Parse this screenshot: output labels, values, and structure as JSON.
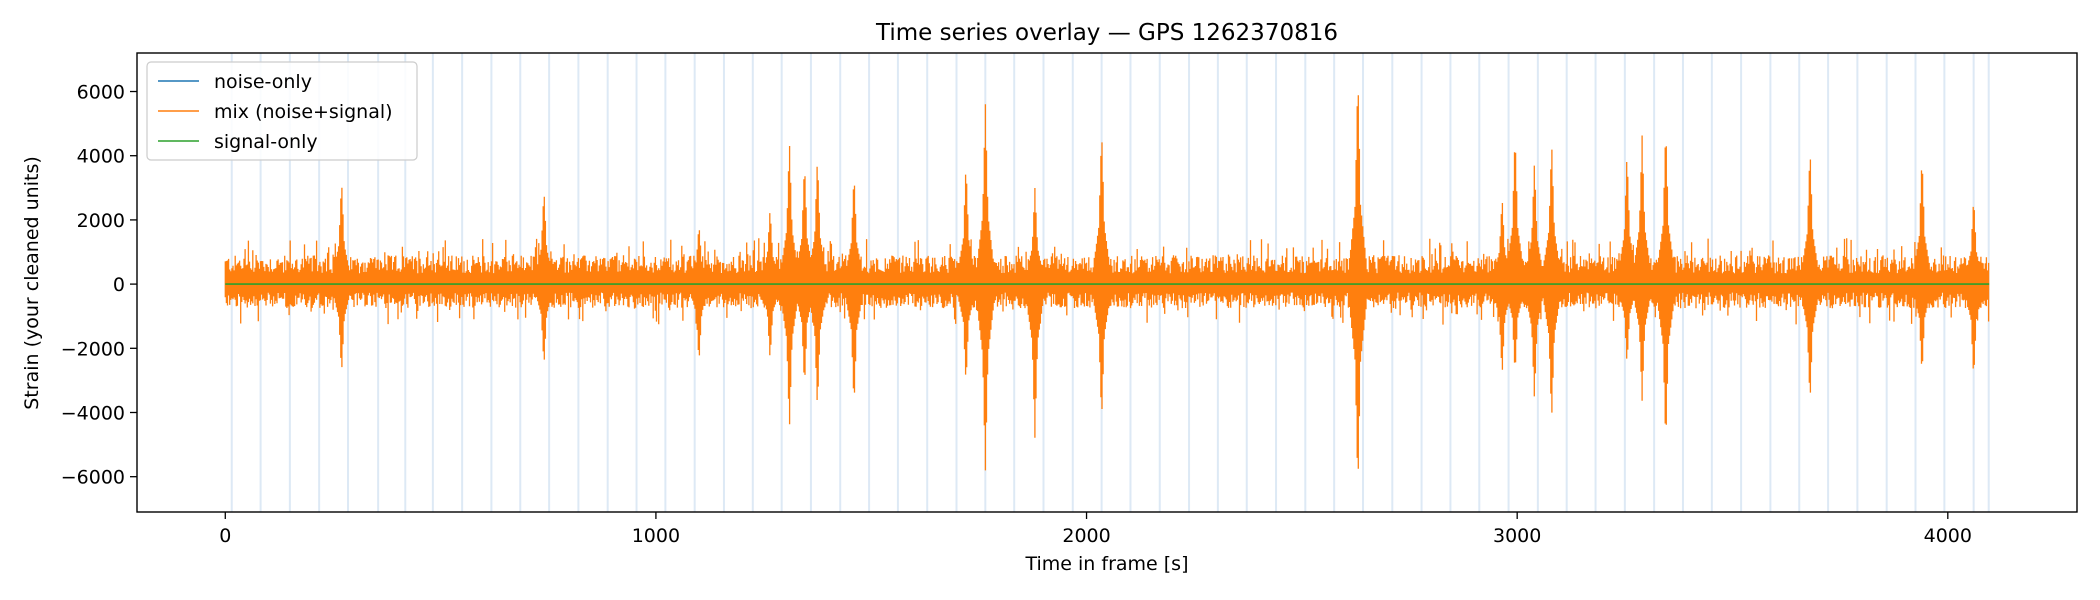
{
  "chart_data": {
    "type": "line",
    "title": "Time series overlay — GPS 1262370816",
    "xlabel": "Time in frame [s]",
    "ylabel": "Strain (your cleaned units)",
    "xlim": [
      -205,
      4300
    ],
    "ylim": [
      -7100,
      7200
    ],
    "xticks": [
      0,
      1000,
      2000,
      3000,
      4000
    ],
    "yticks": [
      -6000,
      -4000,
      -2000,
      0,
      2000,
      4000,
      6000
    ],
    "ytick_labels": [
      "−6000",
      "−4000",
      "−2000",
      "0",
      "2000",
      "4000",
      "6000"
    ],
    "grid": false,
    "legend_position": "upper-left",
    "data_range": [
      0,
      4096
    ],
    "series": [
      {
        "name": "noise-only",
        "color": "#1f77b4",
        "baseline_amplitude": 700
      },
      {
        "name": "mix (noise+signal)",
        "color": "#ff7f0e",
        "baseline_amplitude": 750
      },
      {
        "name": "signal-only",
        "color": "#2ca02c",
        "values_approx": 0
      }
    ],
    "segment_marker_color": "#c6dbef",
    "segment_markers_x": [
      15,
      82,
      150,
      218,
      285,
      355,
      418,
      482,
      550,
      618,
      685,
      752,
      820,
      888,
      955,
      1022,
      1090,
      1158,
      1225,
      1292,
      1360,
      1428,
      1495,
      1562,
      1630,
      1698,
      1765,
      1832,
      1900,
      1968,
      2035,
      2102,
      2170,
      2238,
      2305,
      2372,
      2440,
      2508,
      2575,
      2642,
      2710,
      2778,
      2845,
      2912,
      2980,
      3048,
      3115,
      3182,
      3250,
      3318,
      3385,
      3452,
      3520,
      3588,
      3655,
      3722,
      3790,
      3858,
      3925,
      3992,
      4060,
      4095
    ],
    "spikes": [
      {
        "x": 270,
        "ymax": 3250,
        "ymin": -2800
      },
      {
        "x": 740,
        "ymax": 2950,
        "ymin": -2550
      },
      {
        "x": 1100,
        "ymax": 1850,
        "ymin": -2450
      },
      {
        "x": 1265,
        "ymax": 2350,
        "ymin": -2350
      },
      {
        "x": 1310,
        "ymax": 4480,
        "ymin": -4550
      },
      {
        "x": 1345,
        "ymax": 3800,
        "ymin": -3200
      },
      {
        "x": 1375,
        "ymax": 3950,
        "ymin": -3900
      },
      {
        "x": 1460,
        "ymax": 3450,
        "ymin": -3800
      },
      {
        "x": 1720,
        "ymax": 3750,
        "ymin": -3100
      },
      {
        "x": 1765,
        "ymax": 5650,
        "ymin": -5850
      },
      {
        "x": 1880,
        "ymax": 3000,
        "ymin": -4800
      },
      {
        "x": 2035,
        "ymax": 4820,
        "ymin": -4250
      },
      {
        "x": 2630,
        "ymax": 6550,
        "ymin": -6400
      },
      {
        "x": 2965,
        "ymax": 2700,
        "ymin": -2850
      },
      {
        "x": 2995,
        "ymax": 4700,
        "ymin": -2800
      },
      {
        "x": 3040,
        "ymax": 3800,
        "ymin": -3600
      },
      {
        "x": 3080,
        "ymax": 4450,
        "ymin": -4250
      },
      {
        "x": 3255,
        "ymax": 4100,
        "ymin": -2500
      },
      {
        "x": 3290,
        "ymax": 4650,
        "ymin": -3650
      },
      {
        "x": 3345,
        "ymax": 4900,
        "ymin": -5000
      },
      {
        "x": 3680,
        "ymax": 4250,
        "ymin": -3700
      },
      {
        "x": 3940,
        "ymax": 4000,
        "ymin": -2800
      },
      {
        "x": 4060,
        "ymax": 2700,
        "ymin": -2950
      }
    ]
  }
}
